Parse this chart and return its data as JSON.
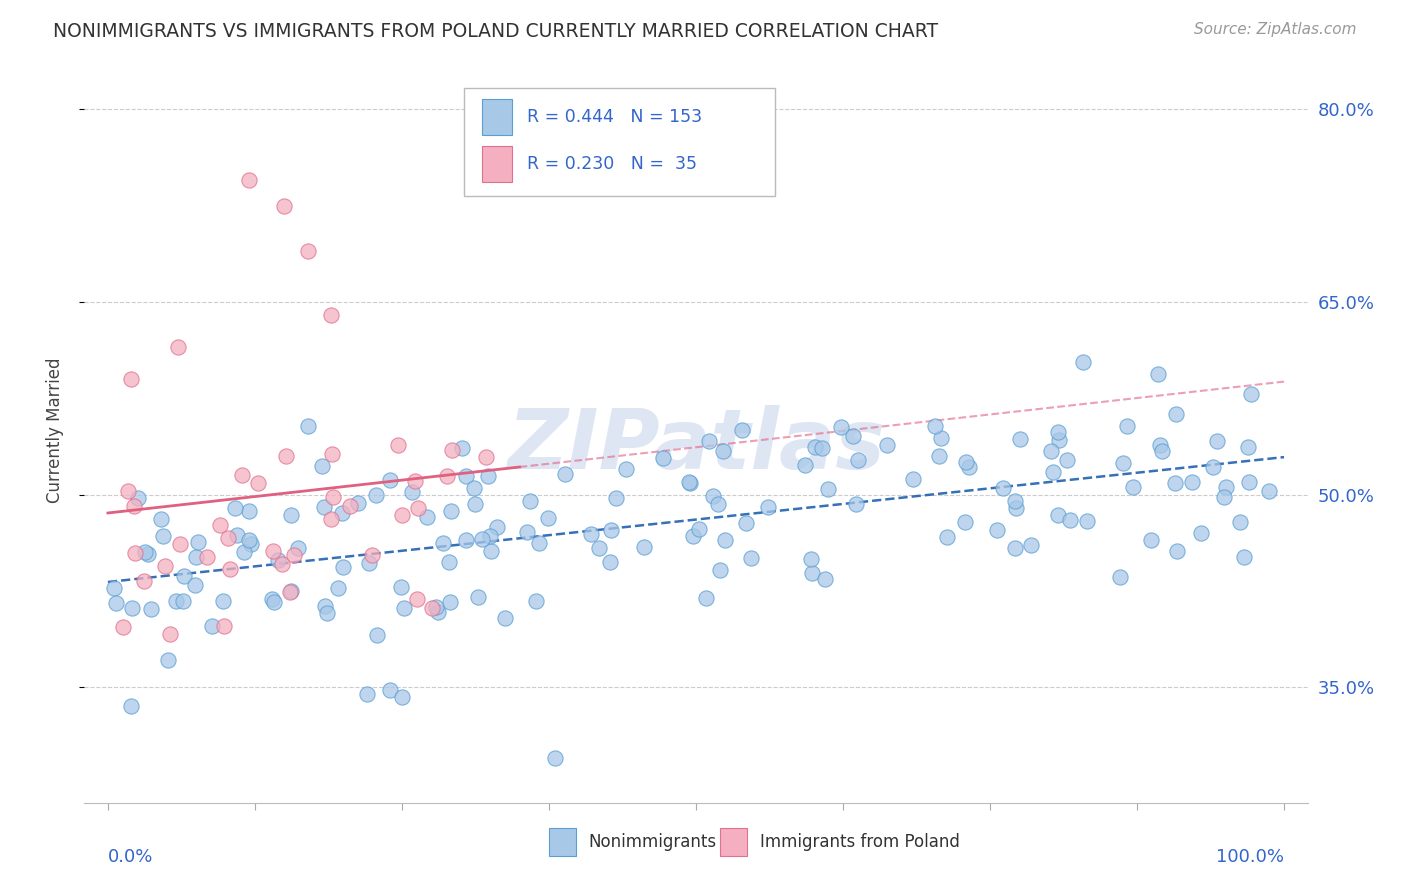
{
  "title": "NONIMMIGRANTS VS IMMIGRANTS FROM POLAND CURRENTLY MARRIED CORRELATION CHART",
  "source": "Source: ZipAtlas.com",
  "ylabel": "Currently Married",
  "y_ticks": [
    0.35,
    0.5,
    0.65,
    0.8
  ],
  "y_tick_labels": [
    "35.0%",
    "50.0%",
    "65.0%",
    "80.0%"
  ],
  "nonimmigrant_color": "#A8C8E8",
  "nonimmigrant_edge": "#5A9FD4",
  "immigrant_color": "#F4B0C0",
  "immigrant_edge": "#E07090",
  "trend_nonimmigrant_color": "#2060B0",
  "trend_immigrant_color": "#E06080",
  "R_nonimmigrant": 0.444,
  "N_nonimmigrant": 153,
  "R_immigrant": 0.23,
  "N_immigrant": 35,
  "xlim": [
    -0.02,
    1.02
  ],
  "ylim": [
    0.26,
    0.84
  ],
  "watermark_text": "ZIPatlas",
  "watermark_color": "#D0DCF0"
}
